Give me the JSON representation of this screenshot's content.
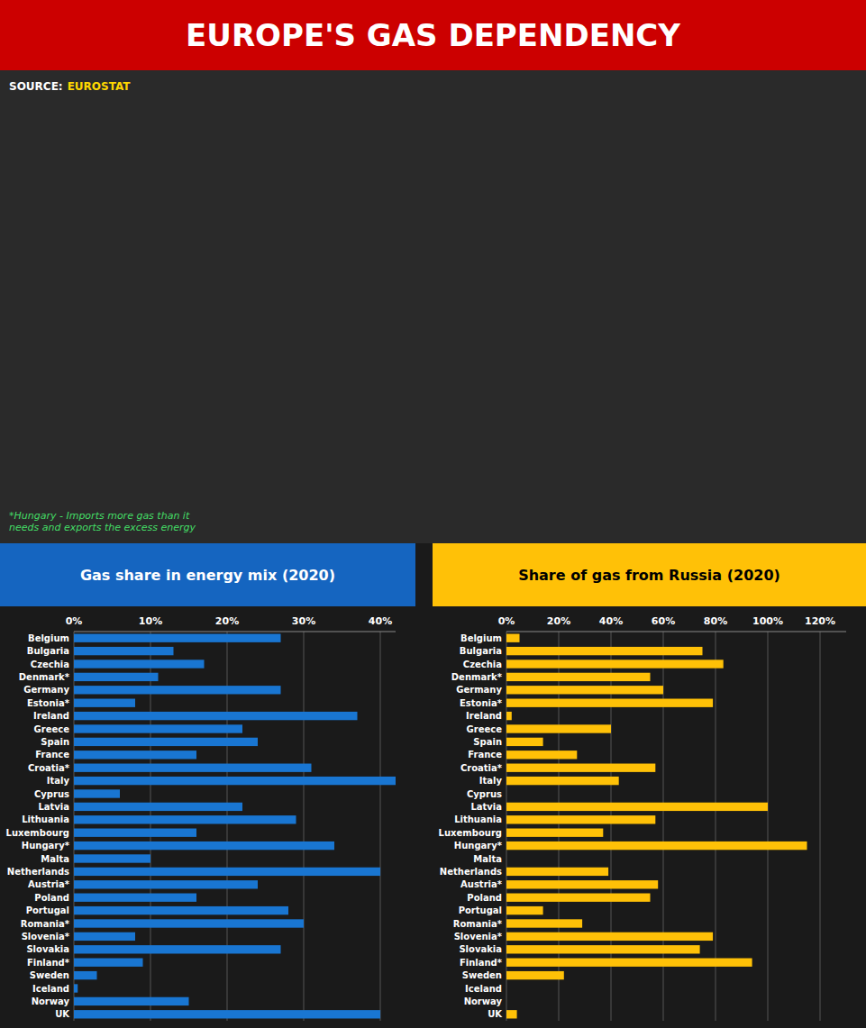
{
  "title": "EUROPE'S GAS DEPENDENCY",
  "annotations": [
    "SOURCE:",
    "EUROSTAT",
    "*Hungary - Imports more gas than it\nneeds and exports the excess energy"
  ],
  "chart_data": [
    {
      "type": "bar",
      "orientation": "horizontal",
      "title": "Gas share in energy mix (2020)",
      "categories": [
        "Belgium",
        "Bulgaria",
        "Czechia",
        "Denmark*",
        "Germany",
        "Estonia*",
        "Ireland",
        "Greece",
        "Spain",
        "France",
        "Croatia*",
        "Italy",
        "Cyprus",
        "Latvia",
        "Lithuania",
        "Luxembourg",
        "Hungary*",
        "Malta",
        "Netherlands",
        "Austria*",
        "Poland",
        "Portugal",
        "Romania*",
        "Slovenia*",
        "Slovakia",
        "Finland*",
        "Sweden",
        "Iceland",
        "Norway",
        "UK"
      ],
      "values": [
        27,
        13,
        17,
        11,
        27,
        8,
        37,
        22,
        24,
        16,
        31,
        42,
        6,
        22,
        29,
        16,
        34,
        10,
        40,
        24,
        16,
        28,
        30,
        8,
        27,
        9,
        3,
        0.5,
        15,
        40
      ],
      "color": "#1976d2",
      "xlim": [
        0,
        42
      ],
      "xticks": [
        {
          "value": 0,
          "label": "0%"
        },
        {
          "value": 10,
          "label": "10%"
        },
        {
          "value": 20,
          "label": "20%"
        },
        {
          "value": 30,
          "label": "30%"
        },
        {
          "value": 40,
          "label": "40%"
        }
      ],
      "grid": true
    },
    {
      "type": "bar",
      "orientation": "horizontal",
      "title": "Share of gas from Russia (2020)",
      "categories": [
        "Belgium",
        "Bulgaria",
        "Czechia",
        "Denmark*",
        "Germany",
        "Estonia*",
        "Ireland",
        "Greece",
        "Spain",
        "France",
        "Croatia*",
        "Italy",
        "Cyprus",
        "Latvia",
        "Lithuania",
        "Luxembourg",
        "Hungary*",
        "Malta",
        "Netherlands",
        "Austria*",
        "Poland",
        "Portugal",
        "Romania*",
        "Slovenia*",
        "Slovakia",
        "Finland*",
        "Sweden",
        "Iceland",
        "Norway",
        "UK"
      ],
      "values": [
        5,
        75,
        83,
        55,
        60,
        79,
        2,
        40,
        14,
        27,
        57,
        43,
        0,
        100,
        57,
        37,
        115,
        0,
        39,
        58,
        55,
        14,
        29,
        79,
        74,
        94,
        22,
        0,
        0,
        4
      ],
      "color": "#ffc107",
      "xlim": [
        0,
        130
      ],
      "xticks": [
        {
          "value": 0,
          "label": "0%"
        },
        {
          "value": 20,
          "label": "20%"
        },
        {
          "value": 40,
          "label": "40%"
        },
        {
          "value": 60,
          "label": "60%"
        },
        {
          "value": 80,
          "label": "80%"
        },
        {
          "value": 100,
          "label": "100%"
        },
        {
          "value": 120,
          "label": "120%"
        }
      ],
      "grid": true
    }
  ]
}
